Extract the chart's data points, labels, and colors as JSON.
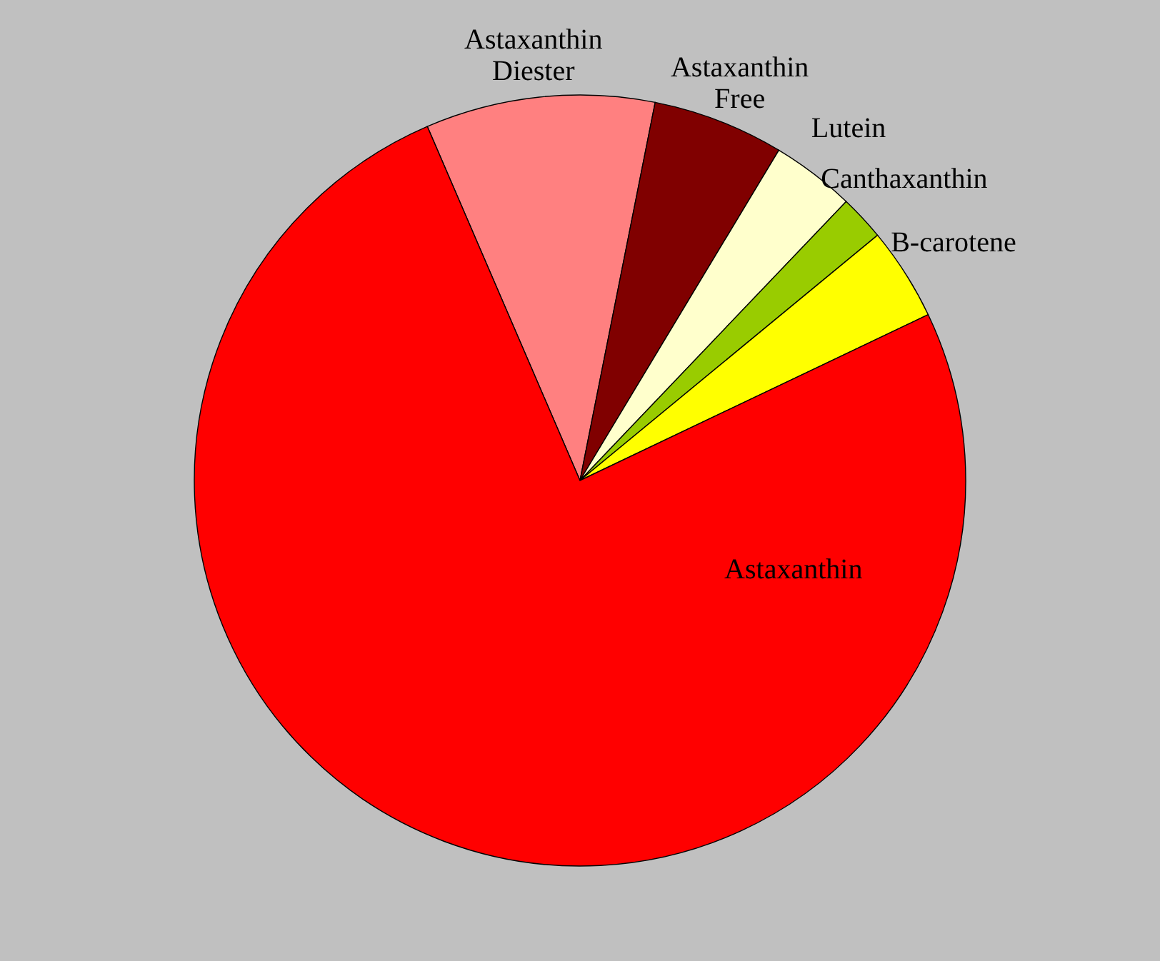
{
  "chart_data": {
    "type": "pie",
    "categories": [
      "Astaxanthin Diester",
      "Astaxanthin Free",
      "Lutein",
      "Canthaxanthin",
      "B-carotene",
      "Astaxanthin"
    ],
    "values": [
      9.6,
      5.5,
      3.5,
      1.9,
      3.9,
      75.6
    ],
    "colors": [
      "#ff8080",
      "#800000",
      "#ffffcc",
      "#99cc00",
      "#ffff00",
      "#ff0000"
    ]
  }
}
